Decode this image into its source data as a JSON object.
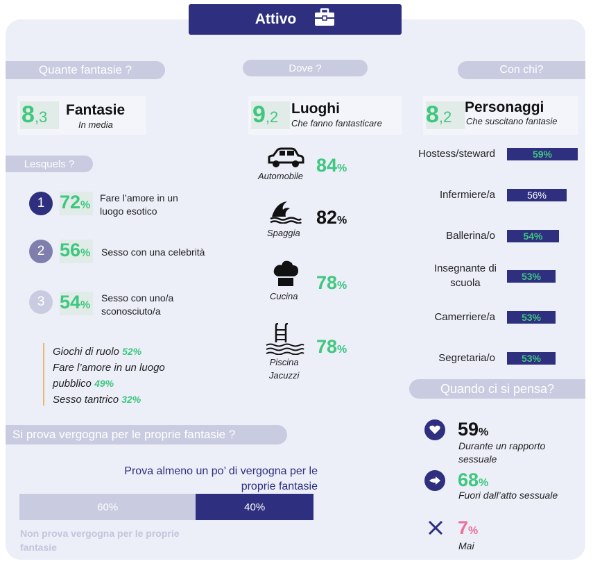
{
  "header": {
    "title": "Attivo",
    "icon": "briefcase-icon"
  },
  "sections": {
    "how_many": "Quante fantasie ?",
    "where": "Dove ?",
    "with_whom": "Con chi?",
    "which": "Lesquels ?",
    "shame": "Si prova vergogna per le proprie fantasie ?",
    "when": "Quando ci si pensa?"
  },
  "fantasies": {
    "int": "8",
    "dec": ",3",
    "label": "Fantasie",
    "sub": "In media"
  },
  "places": {
    "int": "9",
    "dec": ",2",
    "label": "Luoghi",
    "sub": "Che fanno fantasticare"
  },
  "characters": {
    "int": "8",
    "dec": ",2",
    "label": "Personaggi",
    "sub": "Che suscitano fantasie"
  },
  "top_fantasies": [
    {
      "rank": "1",
      "value": "72",
      "unit": "%",
      "text": "Fare l’amore in un luogo esotico"
    },
    {
      "rank": "2",
      "value": "56",
      "unit": "%",
      "text": "Sesso con una celebrità"
    },
    {
      "rank": "3",
      "value": "54",
      "unit": "%",
      "text": "Sesso con uno/a sconosciuto/a"
    }
  ],
  "other_fantasies": [
    {
      "text": "Giochi di ruolo",
      "value": "52",
      "unit": "%"
    },
    {
      "text": "Fare l’amore in un luogo",
      "text2": "pubblico",
      "value": "49",
      "unit": "%"
    },
    {
      "text": "Sesso tantrico",
      "value": "32",
      "unit": "%"
    }
  ],
  "place_items": [
    {
      "name": "Automobile",
      "value": "84",
      "unit": "%",
      "icon": "car-icon"
    },
    {
      "name": "Spaggia",
      "value": "82",
      "unit": "%",
      "icon": "wave-icon"
    },
    {
      "name": "Cucina",
      "value": "78",
      "unit": "%",
      "icon": "chef-hat-icon"
    },
    {
      "name": "Piscina",
      "name2": "Jacuzzi",
      "value": "78",
      "unit": "%",
      "icon": "pool-icon"
    }
  ],
  "character_items": [
    {
      "label": "Hostess/steward",
      "value": "59%",
      "pct": 59
    },
    {
      "label": "Infermiere/a",
      "value": "56%",
      "pct": 56
    },
    {
      "label": "Ballerina/o",
      "value": "54%",
      "pct": 54
    },
    {
      "label": "Insegnante di",
      "label2": "scuola",
      "value": "53%",
      "pct": 53
    },
    {
      "label": "Camerriere/a",
      "value": "53%",
      "pct": 53
    },
    {
      "label": "Segretaria/o",
      "value": "53%",
      "pct": 53
    }
  ],
  "shame_block": {
    "title_line1": "Prova almeno un po’ di vergogna per le",
    "title_line2": "proprie fantasie",
    "no_shame": "60%",
    "shame": "40%",
    "no_shame_pct": 60,
    "shame_pct": 40,
    "footnote_line1": "Non prova vergogna per le proprie",
    "footnote_line2": "fantasie"
  },
  "when_items": [
    {
      "value": "59",
      "unit": "%",
      "line1": "Durante un rapporto",
      "line2": "sessuale",
      "icon": "heart-icon"
    },
    {
      "value": "68",
      "unit": "%",
      "line1": "Fuori dall’atto sessuale",
      "icon": "arrow-icon"
    },
    {
      "value": "7",
      "unit": "%",
      "line1": "Mai",
      "icon": "cross-icon"
    }
  ],
  "colors": {
    "navy": "#2e2f7e",
    "green": "#3ec77f",
    "pink": "#ee6e9a",
    "lavender": "#c9cbe0"
  }
}
